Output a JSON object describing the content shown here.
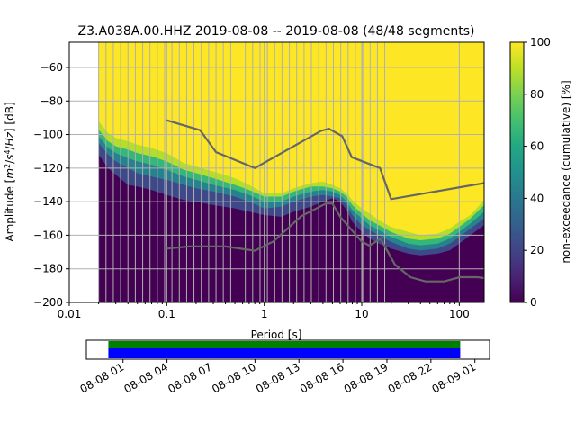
{
  "chart_data": {
    "type": "heatmap",
    "title": "Z3.A038A.00.HHZ   2019-08-08 -- 2019-08-08  (48/48 segments)",
    "xlabel": "Period [s]",
    "ylabel_parts": [
      "Amplitude [",
      "m",
      "2",
      "/",
      "s",
      "4",
      "/",
      "Hz",
      "] [dB]"
    ],
    "xscale": "log",
    "xlim": [
      0.01,
      180
    ],
    "ylim": [
      -200,
      -45
    ],
    "x_ticks": [
      0.01,
      0.1,
      1,
      10,
      100
    ],
    "x_tick_labels": [
      "0.01",
      "0.1",
      "1",
      "10",
      "100"
    ],
    "y_ticks": [
      -200,
      -180,
      -160,
      -140,
      -120,
      -100,
      -80,
      -60
    ],
    "y_tick_labels": [
      "−200",
      "−180",
      "−160",
      "−140",
      "−120",
      "−100",
      "−80",
      "−60"
    ],
    "colorbar": {
      "label": "non-exceedance (cumulative) [%]",
      "range": [
        0,
        100
      ],
      "ticks": [
        0,
        20,
        40,
        60,
        80,
        100
      ],
      "tick_labels": [
        "0",
        "20",
        "40",
        "60",
        "80",
        "100"
      ],
      "colormap": "viridis"
    },
    "data_period_min": 0.02,
    "period_gridlines": [
      0.02,
      0.0238,
      0.0283,
      0.0336,
      0.04,
      0.0476,
      0.0566,
      0.0673,
      0.08,
      0.0951,
      0.113,
      0.1345,
      0.16,
      0.19,
      0.226,
      0.269,
      0.32,
      0.38,
      0.453,
      0.538,
      0.64,
      0.761,
      0.905,
      1.076,
      1.28,
      1.52,
      1.81,
      2.15,
      2.56,
      3.04,
      3.62,
      4.3,
      5.12,
      6.09,
      7.24,
      8.6,
      10.24,
      12.18,
      14.48,
      17.2
    ],
    "percentile_bands": {
      "period": [
        0.02,
        0.025,
        0.03,
        0.04,
        0.05,
        0.07,
        0.1,
        0.15,
        0.2,
        0.3,
        0.5,
        0.7,
        1,
        1.5,
        2,
        3,
        4,
        5,
        6,
        7,
        8,
        10,
        12,
        15,
        20,
        30,
        40,
        60,
        80,
        100,
        130,
        180
      ],
      "p0": [
        -112,
        -120,
        -124,
        -130,
        -131,
        -133,
        -136,
        -139,
        -140,
        -142,
        -144,
        -146,
        -148,
        -149,
        -146,
        -143,
        -140,
        -138,
        -140,
        -145,
        -152,
        -158,
        -162,
        -165,
        -168,
        -171,
        -172,
        -171,
        -169,
        -165,
        -160,
        -154
      ],
      "p25": [
        -105,
        -112,
        -116,
        -120,
        -123,
        -125,
        -127,
        -130,
        -132,
        -134,
        -137,
        -140,
        -144,
        -143,
        -140,
        -137,
        -136,
        -137,
        -138,
        -142,
        -148,
        -154,
        -157,
        -160,
        -164,
        -168,
        -169,
        -168,
        -165,
        -161,
        -156,
        -150
      ],
      "p50": [
        -101,
        -108,
        -111,
        -114,
        -116,
        -118,
        -121,
        -125,
        -127,
        -130,
        -133,
        -136,
        -140,
        -140,
        -137,
        -134,
        -133,
        -134,
        -136,
        -140,
        -145,
        -150,
        -154,
        -157,
        -161,
        -165,
        -166,
        -165,
        -162,
        -158,
        -153,
        -146
      ],
      "p75": [
        -97,
        -104,
        -107,
        -109,
        -111,
        -113,
        -116,
        -121,
        -123,
        -126,
        -130,
        -133,
        -137,
        -137,
        -134,
        -131,
        -131,
        -132,
        -134,
        -137,
        -142,
        -147,
        -151,
        -154,
        -158,
        -162,
        -163,
        -162,
        -159,
        -155,
        -150,
        -142
      ],
      "p100": [
        -92,
        -99,
        -102,
        -104,
        -106,
        -108,
        -111,
        -117,
        -119,
        -122,
        -126,
        -130,
        -135,
        -135,
        -132,
        -129,
        -128,
        -130,
        -132,
        -135,
        -139,
        -144,
        -147,
        -151,
        -155,
        -158,
        -160,
        -159,
        -156,
        -152,
        -148,
        -139
      ]
    },
    "noise_model_high": {
      "period": [
        0.1,
        0.22,
        0.32,
        0.8,
        3.8,
        4.6,
        6.3,
        7.9,
        15.4,
        20,
        354.8
      ],
      "amplitude": [
        -91.5,
        -97.4,
        -110.5,
        -120,
        -97.9,
        -96.5,
        -101,
        -113.5,
        -120,
        -138.5,
        -126
      ]
    },
    "noise_model_low": {
      "period": [
        0.1,
        0.17,
        0.4,
        0.8,
        1.24,
        2.4,
        4.3,
        5,
        6,
        10,
        12,
        15.6,
        21.9,
        31.6,
        45,
        70,
        101,
        154,
        328
      ],
      "amplitude": [
        -168,
        -166.7,
        -166.7,
        -169.2,
        -163.7,
        -148.6,
        -141.1,
        -141.1,
        -149,
        -163.8,
        -166.2,
        -162.1,
        -177.5,
        -185,
        -187.5,
        -187.5,
        -185,
        -185,
        -187.5
      ]
    },
    "time_axis": {
      "tick_labels": [
        "08-08 01",
        "08-08 04",
        "08-08 07",
        "08-08 10",
        "08-08 13",
        "08-08 16",
        "08-08 19",
        "08-08 22",
        "08-09 01"
      ],
      "tick_hours": [
        1,
        4,
        7,
        10,
        13,
        16,
        19,
        22,
        25
      ],
      "range_hours": [
        -1.5,
        26
      ],
      "coverage": [
        {
          "name": "data",
          "start_hour": 0,
          "end_hour": 24,
          "color": "#0000ff"
        },
        {
          "name": "processed",
          "start_hour": 0,
          "end_hour": 24,
          "color": "#008000"
        }
      ]
    }
  }
}
